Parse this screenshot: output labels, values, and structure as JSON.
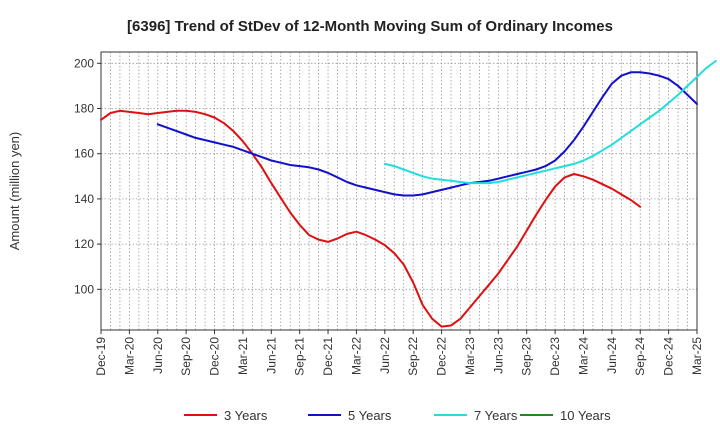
{
  "chart_data": {
    "type": "line",
    "title": "[6396]  Trend of StDev of 12-Month Moving Sum of Ordinary Incomes",
    "xlabel": "",
    "ylabel": "Amount (million yen)",
    "ylim": [
      82,
      205
    ],
    "yticks": [
      100,
      120,
      140,
      160,
      180,
      200
    ],
    "x_tick_labels": [
      "Dec-19",
      "Mar-20",
      "Jun-20",
      "Sep-20",
      "Dec-20",
      "Mar-21",
      "Jun-21",
      "Sep-21",
      "Dec-21",
      "Mar-22",
      "Jun-22",
      "Sep-22",
      "Dec-22",
      "Mar-23",
      "Jun-23",
      "Sep-23",
      "Dec-23",
      "Mar-24",
      "Jun-24",
      "Sep-24",
      "Dec-24",
      "Mar-25"
    ],
    "grid": true,
    "legend_position": "bottom",
    "series": [
      {
        "name": "3 Years",
        "color": "#dd1111",
        "start_index": 0,
        "values": [
          175,
          178,
          179,
          178.5,
          178,
          177.5,
          178,
          178.5,
          179,
          179,
          178.5,
          177.5,
          176,
          173.5,
          170,
          165.5,
          160,
          154,
          147,
          140.5,
          134,
          128.5,
          124,
          122,
          121,
          122.5,
          124.5,
          125.5,
          124,
          122,
          119.5,
          116,
          111,
          103,
          93,
          87,
          83.5,
          84,
          87,
          92,
          97,
          102,
          107,
          113,
          119,
          126,
          133,
          139.5,
          145.5,
          149.5,
          151,
          150,
          148.5,
          146.5,
          144.5,
          142,
          139.5,
          136.5
        ]
      },
      {
        "name": "5 Years",
        "color": "#1111cc",
        "start_index": 6,
        "values": [
          173,
          171.5,
          170,
          168.5,
          167,
          166,
          165,
          164,
          163,
          161.5,
          160,
          158.5,
          157,
          156,
          155,
          154.5,
          154,
          153,
          151.5,
          149.5,
          147.5,
          146,
          145,
          144,
          143,
          142,
          141.5,
          141.5,
          142,
          143,
          144,
          145,
          146,
          147,
          147.5,
          148,
          149,
          150,
          151,
          152,
          153,
          154.5,
          157,
          161,
          166,
          172,
          178.5,
          185,
          191,
          194.5,
          196,
          196,
          195.5,
          194.5,
          193,
          190,
          186,
          182
        ]
      },
      {
        "name": "7 Years",
        "color": "#22dddd",
        "start_index": 30,
        "values": [
          155.5,
          154.5,
          153,
          151.5,
          150,
          149,
          148.5,
          148,
          147.5,
          147,
          147,
          147,
          147.5,
          148.5,
          149.5,
          150.5,
          151.5,
          152.5,
          153.5,
          154.5,
          155.5,
          157,
          159,
          161.5,
          164,
          167,
          170,
          173,
          176,
          179,
          182.5,
          186,
          190,
          194,
          198,
          201
        ]
      },
      {
        "name": "10 Years",
        "color": "#228822",
        "start_index": 0,
        "values": []
      }
    ]
  }
}
